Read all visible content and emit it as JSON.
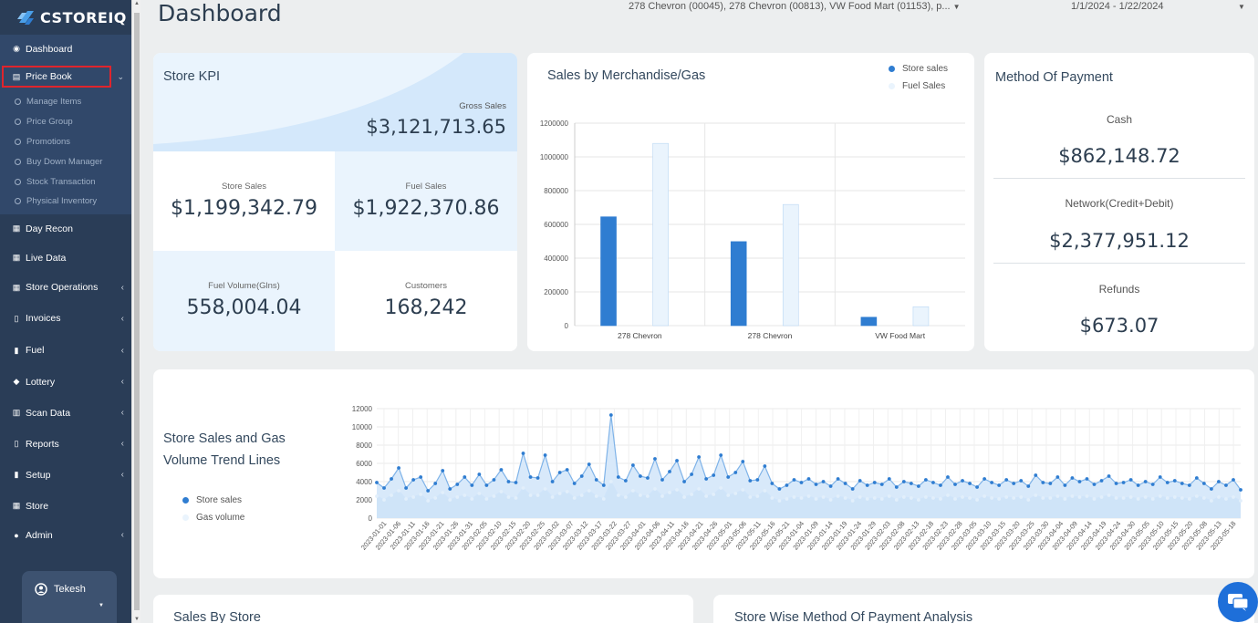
{
  "brand": {
    "name": "CSTOREIQ"
  },
  "header": {
    "title": "Dashboard",
    "store_filter": "278 Chevron (00045), 278 Chevron (00813), VW Food Mart (01153), p...",
    "date_range": "1/1/2024 - 1/22/2024"
  },
  "sidebar": {
    "dashboard": "Dashboard",
    "price_book": "Price Book",
    "price_book_items": [
      "Manage Items",
      "Price Group",
      "Promotions",
      "Buy Down Manager",
      "Stock Transaction",
      "Physical Inventory"
    ],
    "day_recon": "Day Recon",
    "live_data": "Live Data",
    "store_operations": "Store Operations",
    "invoices": "Invoices",
    "fuel": "Fuel",
    "lottery": "Lottery",
    "scan_data": "Scan Data",
    "reports": "Reports",
    "setup": "Setup",
    "store": "Store",
    "admin": "Admin",
    "user": "Tekesh"
  },
  "kpi": {
    "title": "Store KPI",
    "gross_sales_label": "Gross Sales",
    "gross_sales": "$3,121,713.65",
    "store_sales_label": "Store Sales",
    "store_sales": "$1,199,342.79",
    "fuel_sales_label": "Fuel Sales",
    "fuel_sales": "$1,922,370.86",
    "fuel_volume_label": "Fuel Volume(Glns)",
    "fuel_volume": "558,004.04",
    "customers_label": "Customers",
    "customers": "168,242"
  },
  "payment": {
    "title": "Method Of Payment",
    "cash_label": "Cash",
    "cash": "$862,148.72",
    "network_label": "Network(Credit+Debit)",
    "network": "$2,377,951.12",
    "refunds_label": "Refunds",
    "refunds": "$673.07"
  },
  "merch_chart": {
    "title": "Sales by Merchandise/Gas",
    "legend": [
      "Store sales",
      "Fuel Sales"
    ]
  },
  "trend_chart": {
    "title_line1": "Store Sales and Gas",
    "title_line2": "Volume Trend Lines",
    "legend": [
      "Store sales",
      "Gas volume"
    ]
  },
  "bottom": {
    "sales_by_store": "Sales By Store",
    "store_wise_payment": "Store Wise Method Of Payment Analysis"
  },
  "colors": {
    "accent": "#2f7dd1",
    "light_series": "#eaf4fd",
    "sidebar": "#2a3d57"
  },
  "chart_data": [
    {
      "type": "bar",
      "title": "Sales by Merchandise/Gas",
      "categories": [
        "278 Chevron",
        "278 Chevron",
        "VW Food Mart"
      ],
      "series": [
        {
          "name": "Store sales",
          "values": [
            645000,
            498000,
            50000
          ]
        },
        {
          "name": "Fuel Sales",
          "values": [
            1080000,
            718000,
            112000
          ]
        }
      ],
      "ylim": [
        0,
        1200000
      ],
      "yticks": [
        0,
        200000,
        400000,
        600000,
        800000,
        1000000,
        1200000
      ],
      "legend": "top-right",
      "grid": true
    },
    {
      "type": "area",
      "title": "Store Sales and Gas Volume Trend Lines",
      "ylim": [
        0,
        12000
      ],
      "yticks": [
        0,
        2000,
        4000,
        6000,
        8000,
        10000,
        12000
      ],
      "x_tick_labels": [
        "2023-01-01",
        "2023-01-06",
        "2023-01-11",
        "2023-01-16",
        "2023-01-21",
        "2023-01-26",
        "2023-01-31",
        "2023-02-05",
        "2023-02-10",
        "2023-02-15",
        "2023-02-20",
        "2023-02-25",
        "2023-03-02",
        "2023-03-07",
        "2023-03-12",
        "2023-03-17",
        "2023-03-22",
        "2023-03-27",
        "2023-04-01",
        "2023-04-06",
        "2023-04-11",
        "2023-04-16",
        "2023-04-21",
        "2023-04-26",
        "2023-05-01",
        "2023-05-06",
        "2023-05-11",
        "2023-05-16",
        "2023-05-21",
        "2023-01-04",
        "2023-01-09",
        "2023-01-14",
        "2023-01-19",
        "2023-01-24",
        "2023-01-29",
        "2023-02-03",
        "2023-02-08",
        "2023-02-13",
        "2023-02-18",
        "2023-02-23",
        "2023-02-28",
        "2023-03-05",
        "2023-03-10",
        "2023-03-15",
        "2023-03-20",
        "2023-03-25",
        "2023-03-30",
        "2023-04-04",
        "2023-04-09",
        "2023-04-14",
        "2023-04-19",
        "2023-04-24",
        "2023-04-30",
        "2023-05-05",
        "2023-05-10",
        "2023-05-15",
        "2023-05-20",
        "2023-05-08",
        "2023-05-13",
        "2023-05-18"
      ],
      "series": [
        {
          "name": "Store sales",
          "values": [
            3900,
            3300,
            4300,
            5500,
            3300,
            4200,
            4500,
            3000,
            3800,
            5200,
            3200,
            3700,
            4500,
            3600,
            4800,
            3600,
            4200,
            5300,
            4000,
            3900,
            7100,
            4500,
            4400,
            6900,
            4000,
            5000,
            5300,
            3800,
            4600,
            5900,
            4200,
            3600,
            11300,
            4500,
            4100,
            5800,
            4600,
            4400,
            6500,
            4200,
            5100,
            6300,
            4000,
            4800,
            6700,
            4300,
            4700,
            6900,
            4500,
            5000,
            6200,
            4100,
            4200,
            5700,
            3800,
            3200,
            3600,
            4200,
            3900,
            4300,
            3700,
            4000,
            3500,
            4300,
            3800,
            3200,
            4100,
            3600,
            3900,
            3700,
            4300,
            3400,
            4000,
            3800,
            3500,
            4200,
            3900,
            3600,
            4500,
            3700,
            4100,
            3800,
            3400,
            4300,
            3900,
            3600,
            4200,
            3800,
            4100,
            3500,
            4700,
            3900,
            3800,
            4500,
            3600,
            4400,
            4000,
            4300,
            3700,
            4100,
            4600,
            3800,
            3900,
            4200,
            3600,
            4000,
            3700,
            4500,
            3900,
            4100,
            3800,
            3600,
            4400,
            3800,
            3200,
            4000,
            3600,
            4200,
            3100
          ]
        },
        {
          "name": "Gas volume",
          "values": [
            2400,
            2000,
            2500,
            3000,
            2100,
            2300,
            2600,
            1900,
            2200,
            2800,
            2000,
            2300,
            2500,
            2100,
            2700,
            2100,
            2400,
            2900,
            2300,
            2200,
            3300,
            2500,
            2500,
            3200,
            2300,
            2700,
            2900,
            2200,
            2500,
            3000,
            2400,
            2100,
            4000,
            2500,
            2300,
            3000,
            2500,
            2400,
            3200,
            2400,
            2800,
            3100,
            2300,
            2600,
            3200,
            2400,
            2600,
            3300,
            2500,
            2700,
            3100,
            2300,
            2400,
            3000,
            2200,
            1900,
            2100,
            2300,
            2200,
            2400,
            2100,
            2300,
            2000,
            2400,
            2200,
            1900,
            2300,
            2100,
            2200,
            2100,
            2400,
            2000,
            2300,
            2200,
            2000,
            2300,
            2200,
            2100,
            2500,
            2100,
            2300,
            2200,
            2000,
            2400,
            2200,
            2100,
            2300,
            2200,
            2300,
            2000,
            2500,
            2200,
            2200,
            2400,
            2100,
            2400,
            2300,
            2400,
            2100,
            2300,
            2500,
            2200,
            2200,
            2300,
            2100,
            2300,
            2100,
            2400,
            2200,
            2300,
            2200,
            2100,
            2400,
            2200,
            1900,
            2300,
            2100,
            2300,
            1900
          ]
        }
      ],
      "legend": "left"
    }
  ]
}
